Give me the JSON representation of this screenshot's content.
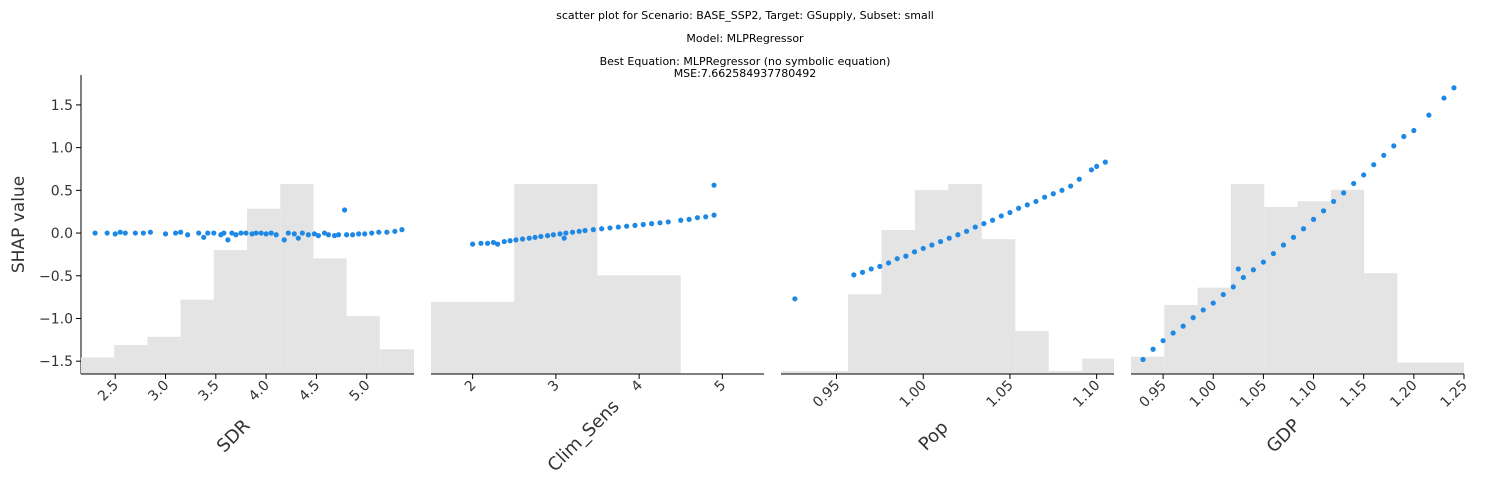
{
  "titles": {
    "line1": "scatter plot for Scenario: BASE_SSP2, Target: GSupply, Subset: small",
    "line2": "Model: MLPRegressor",
    "line3": "Best Equation: MLPRegressor (no symbolic equation)",
    "line4": "MSE:7.662584937780492"
  },
  "colors": {
    "points": "#1e88e5",
    "hist": "#e4e4e4",
    "axis": "#000000"
  },
  "chart_data": {
    "type": "scatter",
    "ylabel": "SHAP value",
    "ylim": [
      -1.65,
      1.85
    ],
    "yticks": [
      -1.5,
      -1.0,
      -0.5,
      0.0,
      0.5,
      1.0,
      1.5
    ],
    "ytick_labels": [
      "−1.5",
      "−1.0",
      "−0.5",
      "0.0",
      "0.5",
      "1.0",
      "1.5"
    ],
    "grid": false,
    "panels": [
      {
        "feature": "SDR",
        "xlim": [
          2.16,
          5.47
        ],
        "xticks": [
          2.5,
          3.0,
          3.5,
          4.0,
          4.5,
          5.0
        ],
        "xtick_labels": [
          "2.5",
          "3.0",
          "3.5",
          "4.0",
          "4.5",
          "5.0"
        ],
        "hist_edges": [
          2.16,
          2.49,
          2.82,
          3.15,
          3.48,
          3.81,
          4.14,
          4.47,
          4.8,
          5.13,
          5.47
        ],
        "hist_heights": [
          0.02,
          0.035,
          0.045,
          0.09,
          0.15,
          0.2,
          0.23,
          0.14,
          0.07,
          0.03
        ],
        "points": [
          [
            2.3,
            0.0
          ],
          [
            2.42,
            0.0
          ],
          [
            2.5,
            -0.01
          ],
          [
            2.55,
            0.01
          ],
          [
            2.6,
            0.0
          ],
          [
            2.7,
            0.0
          ],
          [
            2.78,
            0.0
          ],
          [
            2.85,
            0.01
          ],
          [
            3.0,
            -0.01
          ],
          [
            3.1,
            0.0
          ],
          [
            3.15,
            0.01
          ],
          [
            3.22,
            -0.02
          ],
          [
            3.33,
            0.0
          ],
          [
            3.38,
            -0.05
          ],
          [
            3.42,
            0.0
          ],
          [
            3.48,
            0.0
          ],
          [
            3.55,
            -0.02
          ],
          [
            3.58,
            0.0
          ],
          [
            3.62,
            -0.08
          ],
          [
            3.66,
            0.0
          ],
          [
            3.7,
            -0.02
          ],
          [
            3.75,
            0.0
          ],
          [
            3.8,
            0.0
          ],
          [
            3.86,
            -0.01
          ],
          [
            3.9,
            0.0
          ],
          [
            3.95,
            0.0
          ],
          [
            4.0,
            -0.01
          ],
          [
            4.05,
            0.0
          ],
          [
            4.1,
            -0.02
          ],
          [
            4.18,
            -0.08
          ],
          [
            4.22,
            0.0
          ],
          [
            4.28,
            -0.01
          ],
          [
            4.32,
            -0.06
          ],
          [
            4.36,
            0.0
          ],
          [
            4.42,
            -0.02
          ],
          [
            4.48,
            -0.01
          ],
          [
            4.52,
            -0.03
          ],
          [
            4.58,
            0.0
          ],
          [
            4.62,
            -0.02
          ],
          [
            4.68,
            -0.03
          ],
          [
            4.72,
            -0.02
          ],
          [
            4.78,
            0.27
          ],
          [
            4.8,
            -0.02
          ],
          [
            4.86,
            -0.02
          ],
          [
            4.92,
            -0.01
          ],
          [
            4.98,
            -0.01
          ],
          [
            5.05,
            0.0
          ],
          [
            5.12,
            0.01
          ],
          [
            5.2,
            0.01
          ],
          [
            5.28,
            0.02
          ],
          [
            5.35,
            0.04
          ]
        ]
      },
      {
        "feature": "Clim_Sens",
        "xlim": [
          1.5,
          5.5
        ],
        "xticks": [
          2,
          3,
          4,
          5
        ],
        "xtick_labels": [
          "2",
          "3",
          "4",
          "5"
        ],
        "hist_edges": [
          1.5,
          2.5,
          3.5,
          4.5,
          5.5
        ],
        "hist_heights": [
          0.38,
          1.0,
          0.52,
          0.0
        ],
        "points": [
          [
            2.0,
            -0.13
          ],
          [
            2.1,
            -0.12
          ],
          [
            2.18,
            -0.12
          ],
          [
            2.25,
            -0.11
          ],
          [
            2.3,
            -0.13
          ],
          [
            2.38,
            -0.1
          ],
          [
            2.45,
            -0.09
          ],
          [
            2.52,
            -0.08
          ],
          [
            2.6,
            -0.07
          ],
          [
            2.68,
            -0.06
          ],
          [
            2.75,
            -0.05
          ],
          [
            2.82,
            -0.04
          ],
          [
            2.9,
            -0.03
          ],
          [
            2.97,
            -0.02
          ],
          [
            3.05,
            -0.01
          ],
          [
            3.1,
            -0.06
          ],
          [
            3.12,
            0.0
          ],
          [
            3.2,
            0.01
          ],
          [
            3.28,
            0.02
          ],
          [
            3.35,
            0.03
          ],
          [
            3.45,
            0.04
          ],
          [
            3.55,
            0.05
          ],
          [
            3.65,
            0.06
          ],
          [
            3.75,
            0.07
          ],
          [
            3.85,
            0.08
          ],
          [
            3.95,
            0.09
          ],
          [
            4.05,
            0.1
          ],
          [
            4.15,
            0.11
          ],
          [
            4.25,
            0.12
          ],
          [
            4.35,
            0.13
          ],
          [
            4.5,
            0.15
          ],
          [
            4.6,
            0.16
          ],
          [
            4.7,
            0.18
          ],
          [
            4.8,
            0.19
          ],
          [
            4.9,
            0.21
          ],
          [
            4.9,
            0.56
          ]
        ]
      },
      {
        "feature": "Pop",
        "xlim": [
          0.918,
          1.11
        ],
        "xticks": [
          0.95,
          1.0,
          1.05,
          1.1
        ],
        "xtick_labels": [
          "0.95",
          "1.00",
          "1.05",
          "1.10"
        ],
        "hist_edges": [
          0.918,
          0.9373,
          0.9566,
          0.9759,
          0.9952,
          1.0145,
          1.0338,
          1.0531,
          1.0724,
          1.0917,
          1.11
        ],
        "hist_heights": [
          0.01,
          0.01,
          0.26,
          0.47,
          0.6,
          0.62,
          0.44,
          0.14,
          0.01,
          0.05
        ],
        "points": [
          [
            0.926,
            -0.77
          ],
          [
            0.96,
            -0.49
          ],
          [
            0.965,
            -0.46
          ],
          [
            0.97,
            -0.42
          ],
          [
            0.975,
            -0.39
          ],
          [
            0.98,
            -0.35
          ],
          [
            0.985,
            -0.3
          ],
          [
            0.99,
            -0.27
          ],
          [
            0.995,
            -0.22
          ],
          [
            1.0,
            -0.18
          ],
          [
            1.005,
            -0.14
          ],
          [
            1.01,
            -0.1
          ],
          [
            1.015,
            -0.06
          ],
          [
            1.02,
            -0.02
          ],
          [
            1.025,
            0.02
          ],
          [
            1.03,
            0.07
          ],
          [
            1.035,
            0.11
          ],
          [
            1.04,
            0.15
          ],
          [
            1.045,
            0.2
          ],
          [
            1.05,
            0.24
          ],
          [
            1.055,
            0.29
          ],
          [
            1.06,
            0.33
          ],
          [
            1.065,
            0.37
          ],
          [
            1.07,
            0.42
          ],
          [
            1.075,
            0.46
          ],
          [
            1.08,
            0.5
          ],
          [
            1.085,
            0.55
          ],
          [
            1.09,
            0.63
          ],
          [
            1.097,
            0.74
          ],
          [
            1.1,
            0.78
          ],
          [
            1.105,
            0.83
          ]
        ]
      },
      {
        "feature": "GDP",
        "xlim": [
          0.918,
          1.25
        ],
        "xticks": [
          0.95,
          1.0,
          1.05,
          1.1,
          1.15,
          1.2,
          1.25
        ],
        "xtick_labels": [
          "0.95",
          "1.00",
          "1.05",
          "1.10",
          "1.15",
          "1.20",
          "1.25"
        ],
        "hist_edges": [
          0.918,
          0.9512,
          0.9844,
          1.0176,
          1.0508,
          1.084,
          1.1172,
          1.1504,
          1.1836,
          1.2168,
          1.25
        ],
        "hist_heights": [
          0.06,
          0.24,
          0.3,
          0.66,
          0.58,
          0.6,
          0.64,
          0.35,
          0.04,
          0.04
        ],
        "points": [
          [
            0.93,
            -1.48
          ],
          [
            0.94,
            -1.36
          ],
          [
            0.95,
            -1.26
          ],
          [
            0.96,
            -1.17
          ],
          [
            0.97,
            -1.09
          ],
          [
            0.98,
            -0.99
          ],
          [
            0.99,
            -0.9
          ],
          [
            1.0,
            -0.82
          ],
          [
            1.01,
            -0.72
          ],
          [
            1.02,
            -0.63
          ],
          [
            1.025,
            -0.42
          ],
          [
            1.03,
            -0.52
          ],
          [
            1.04,
            -0.43
          ],
          [
            1.05,
            -0.34
          ],
          [
            1.06,
            -0.24
          ],
          [
            1.07,
            -0.14
          ],
          [
            1.08,
            -0.05
          ],
          [
            1.09,
            0.05
          ],
          [
            1.1,
            0.16
          ],
          [
            1.11,
            0.26
          ],
          [
            1.12,
            0.37
          ],
          [
            1.13,
            0.47
          ],
          [
            1.14,
            0.58
          ],
          [
            1.15,
            0.68
          ],
          [
            1.16,
            0.8
          ],
          [
            1.17,
            0.91
          ],
          [
            1.18,
            1.02
          ],
          [
            1.19,
            1.13
          ],
          [
            1.2,
            1.2
          ],
          [
            1.215,
            1.38
          ],
          [
            1.23,
            1.58
          ],
          [
            1.24,
            1.7
          ]
        ]
      }
    ]
  }
}
